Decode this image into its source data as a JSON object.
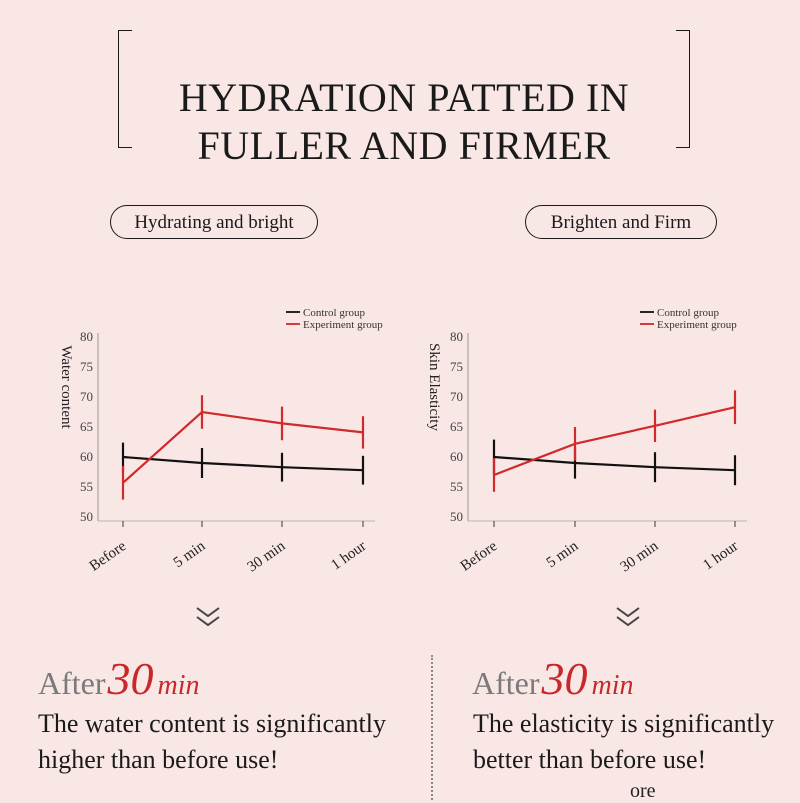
{
  "title": {
    "line1": "HYDRATION PATTED IN",
    "line2": "FULLER AND FIRMER"
  },
  "pills": [
    "Hydrating and bright",
    "Brighten and Firm"
  ],
  "chart_data": [
    {
      "type": "line",
      "ylabel": "Water content",
      "categories": [
        "Before",
        "5 min",
        "30 min",
        "1 hour"
      ],
      "ylim": [
        50,
        80
      ],
      "yticks": [
        50,
        55,
        60,
        65,
        70,
        75,
        80
      ],
      "legend_position": "top-right",
      "error_bars": true,
      "series": [
        {
          "name": "Control group",
          "color": "#111111",
          "values": [
            60,
            59,
            58.3,
            57.8
          ],
          "error": [
            2.4,
            2.5,
            2.4,
            2.4
          ]
        },
        {
          "name": "Experiment group",
          "color": "#d12a2a",
          "values": [
            55.7,
            67.5,
            65.6,
            64.1
          ],
          "error": [
            2.8,
            2.8,
            2.8,
            2.7
          ]
        }
      ]
    },
    {
      "type": "line",
      "ylabel": "Skin Elasticity",
      "categories": [
        "Before",
        "5 min",
        "30 min",
        "1 hour"
      ],
      "ylim": [
        50,
        80
      ],
      "yticks": [
        50,
        55,
        60,
        65,
        70,
        75,
        80
      ],
      "legend_position": "top-right",
      "error_bars": true,
      "series": [
        {
          "name": "Control group",
          "color": "#111111",
          "values": [
            60,
            59,
            58.3,
            57.8
          ],
          "error": [
            2.9,
            2.6,
            2.5,
            2.5
          ]
        },
        {
          "name": "Experiment group",
          "color": "#d12a2a",
          "values": [
            57,
            62.2,
            65.2,
            68.3
          ],
          "error": [
            2.8,
            2.8,
            2.7,
            2.8
          ]
        }
      ]
    }
  ],
  "after": [
    {
      "word": "After",
      "num": "30",
      "unit": "min"
    },
    {
      "word": "After",
      "num": "30",
      "unit": "min"
    }
  ],
  "descriptions": [
    "The water content is significantly higher than before use!",
    "The elasticity is significantly better than before use!"
  ],
  "cut_text": "ore",
  "icons": {
    "scroll_down": "double-chevron-down-icon"
  },
  "colors": {
    "background": "#f9e7e6",
    "accent": "#c8282a",
    "control": "#111111",
    "experiment": "#d12a2a"
  }
}
